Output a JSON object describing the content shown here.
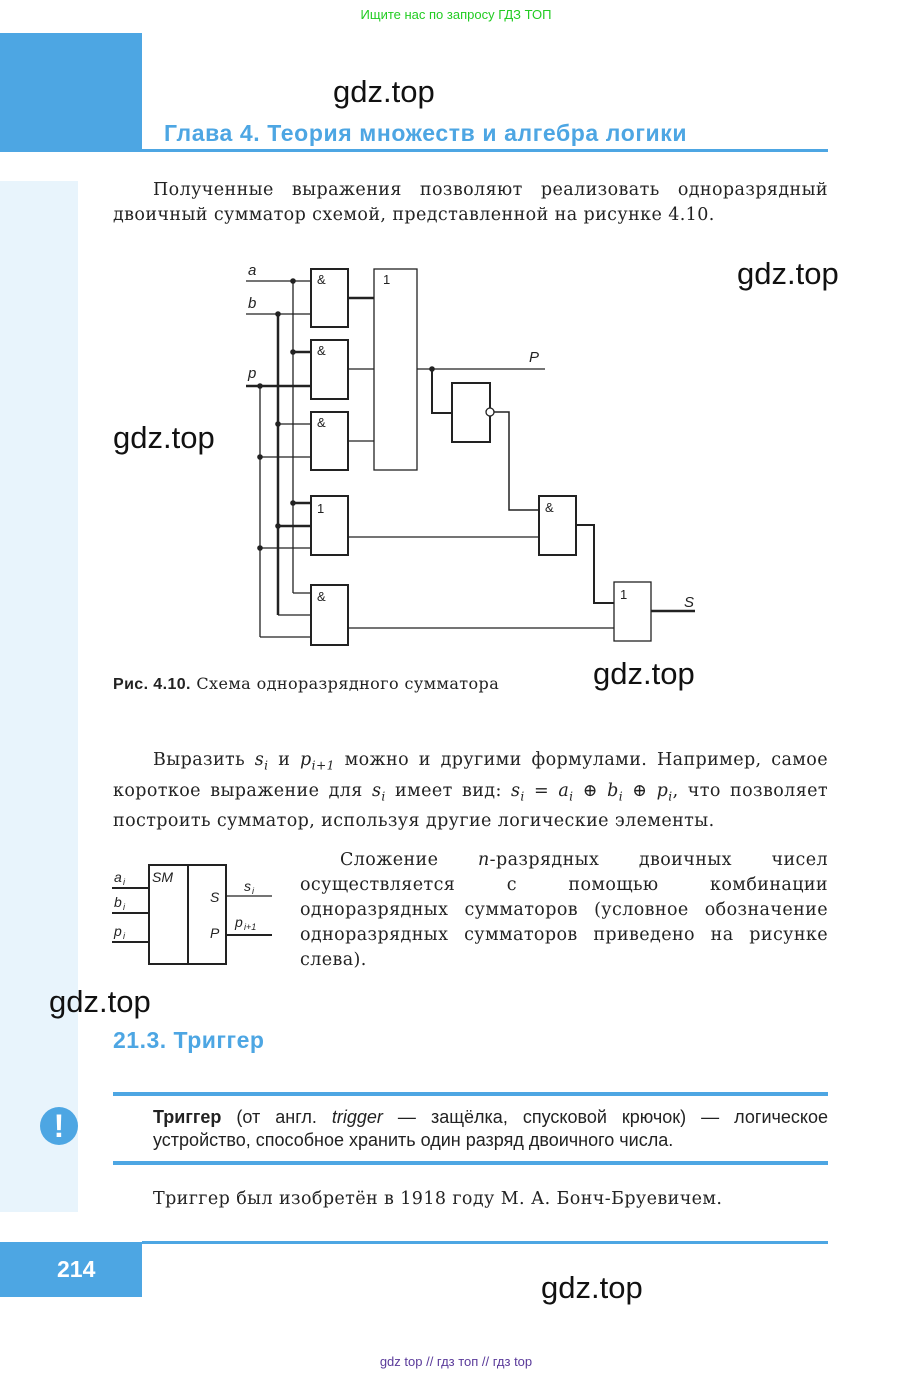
{
  "top_banner": "Ищите нас по запросу ГДЗ ТОП",
  "watermark": "gdz.top",
  "chapter_title": "Глава 4. Теория множеств и алгебра логики",
  "para1": "Полученные выражения позволяют реализовать одноразрядный двоичный сумматор схемой, представленной на рисунке 4.10.",
  "figure": {
    "labels": {
      "a": "a",
      "b": "b",
      "p": "p",
      "P": "P",
      "S": "S",
      "and": "&",
      "or": "1"
    },
    "caption_num": "Рис. 4.10.",
    "caption_text": "Схема одноразрядного сумматора"
  },
  "para2": {
    "t1": "Выразить ",
    "s": "s",
    "i": "i",
    "t2": " и ",
    "p": "p",
    "i1": "i+1",
    "t3": " можно и другими формулами. Например, самое короткое выражение для ",
    "t4": " имеет вид: ",
    "formula": "s",
    "formula_rest_a": " = a",
    "formula_rest_b": " ⊕ b",
    "formula_rest_c": " ⊕ p",
    "t5": ", что позволяет построить сумматор, используя другие логические элементы."
  },
  "sm_block": {
    "title": "SM",
    "inputs": [
      "a",
      "b",
      "p"
    ],
    "sub": "i",
    "out_s": "S",
    "out_p": "P",
    "out_s_label": "s",
    "out_p_label": "p",
    "out_p_sub": "i+1"
  },
  "para3": {
    "t1": "Сложение ",
    "n": "n",
    "t2": "-разрядных двоичных чисел осуществляется с помощью комбинации одноразрядных сумматоров (условное обозначение одноразрядных сумматоров приведено на рисунке слева)."
  },
  "section_title": "21.3. Триггер",
  "definition": {
    "term": "Триггер",
    "t1": " (от англ. ",
    "eng": "trigger",
    "t2": " — защёлка, спусковой крючок) — логическое устройство, способное хранить один разряд двоичного числа.",
    "icon": "exclamation-icon"
  },
  "para4": "Триггер был изобретён в 1918 году М. А. Бонч-Бруевичем.",
  "page_number": "214",
  "footer": "gdz top // гдз топ // гдз top",
  "colors": {
    "accent": "#4da6e3",
    "sidebar": "#e8f4fc",
    "banner": "#22cc22",
    "footer": "#5a3a9a"
  }
}
